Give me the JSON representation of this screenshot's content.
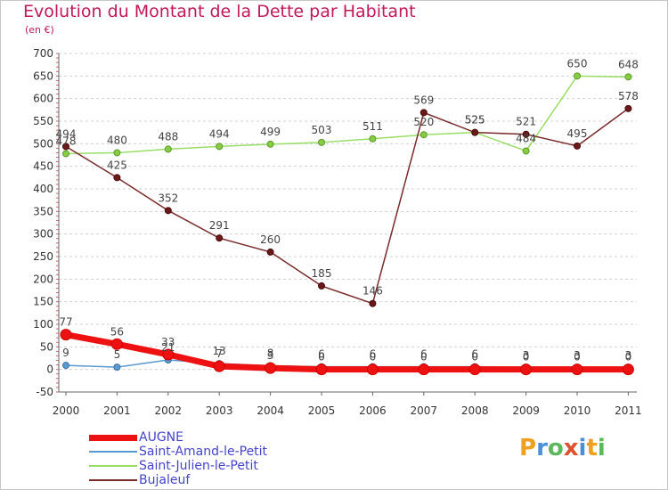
{
  "header": {
    "title": "Evolution du Montant de la Dette par Habitant",
    "subtitle": "(en €)"
  },
  "logo": {
    "letters": [
      "P",
      "r",
      "o",
      "x",
      "i",
      "t",
      "i"
    ],
    "colors": [
      "#f0a020",
      "#4a8fd8",
      "#5cb85c",
      "#e0502a",
      "#4a8fd8",
      "#f0a020",
      "#5cb85c"
    ]
  },
  "chart_data": {
    "type": "line",
    "title": "Evolution du Montant de la Dette par Habitant",
    "subtitle": "(en €)",
    "xlabel": "",
    "ylabel": "",
    "ylim": [
      -50,
      700
    ],
    "yticks": [
      -50,
      0,
      50,
      100,
      150,
      200,
      250,
      300,
      350,
      400,
      450,
      500,
      550,
      600,
      650,
      700
    ],
    "grid": "horizontal-dashed",
    "legend_position": "bottom-left",
    "categories": [
      "2000",
      "2001",
      "2002",
      "2003",
      "2004",
      "2005",
      "2006",
      "2007",
      "2008",
      "2009",
      "2010",
      "2011"
    ],
    "series": [
      {
        "name": "AUGNE",
        "color": "#ee1111",
        "values": [
          77,
          56,
          33,
          7,
          3,
          0,
          0,
          0,
          0,
          0,
          0,
          0
        ],
        "labels": [
          "77",
          "56",
          "33",
          "7",
          "3",
          "0",
          "0",
          "0",
          "0",
          "0",
          "0",
          "0"
        ]
      },
      {
        "name": "Saint-Amand-le-Petit",
        "color": "#5b9ad0",
        "values": [
          9,
          5,
          21,
          13,
          8,
          6,
          6,
          6,
          6,
          3,
          3,
          3
        ],
        "labels": [
          "9",
          "5",
          "21",
          "13",
          "8",
          "6",
          "6",
          "6",
          "6",
          "3",
          "3",
          "3"
        ]
      },
      {
        "name": "Saint-Julien-le-Petit",
        "color": "#99dd66",
        "values": [
          478,
          480,
          488,
          494,
          499,
          503,
          511,
          520,
          525,
          484,
          650,
          648
        ],
        "labels": [
          "478",
          "480",
          "488",
          "494",
          "499",
          "503",
          "511",
          "520",
          "525",
          "484",
          "650",
          "648"
        ]
      },
      {
        "name": "Bujaleuf",
        "color": "#7a2a2a",
        "values": [
          494,
          425,
          352,
          291,
          260,
          185,
          146,
          569,
          525,
          521,
          495,
          578
        ],
        "labels": [
          "494",
          "425",
          "352",
          "291",
          "260",
          "185",
          "146",
          "569",
          "525",
          "521",
          "495",
          "578"
        ]
      }
    ]
  }
}
